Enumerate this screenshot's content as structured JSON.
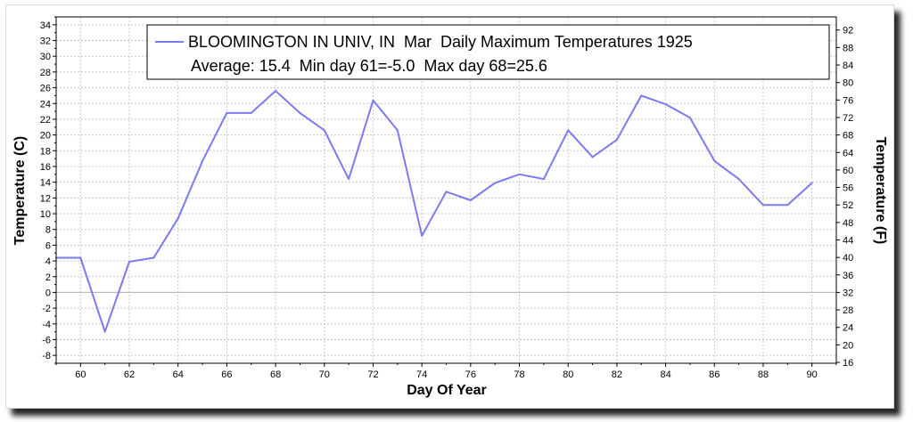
{
  "chart_data": {
    "type": "line",
    "title": "",
    "xlabel": "Day Of Year",
    "ylabel": "Temperature (C)",
    "ylabel_right": "Temperature (F)",
    "xlim": [
      59,
      91
    ],
    "ylim": [
      -9,
      35
    ],
    "ylim_right": [
      15.8,
      95
    ],
    "grid": true,
    "legend_position": "top-right",
    "x_ticks": [
      "60",
      "62",
      "64",
      "66",
      "68",
      "70",
      "72",
      "74",
      "76",
      "78",
      "80",
      "82",
      "84",
      "86",
      "88",
      "90"
    ],
    "y_ticks": [
      "-8",
      "-6",
      "-4",
      "-2",
      "0",
      "2",
      "4",
      "6",
      "8",
      "10",
      "12",
      "14",
      "16",
      "18",
      "20",
      "22",
      "24",
      "26",
      "28",
      "30",
      "32",
      "34"
    ],
    "y_ticks_right": [
      "16",
      "20",
      "24",
      "28",
      "32",
      "36",
      "40",
      "44",
      "48",
      "52",
      "56",
      "60",
      "64",
      "68",
      "72",
      "76",
      "80",
      "84",
      "88",
      "92"
    ],
    "series": [
      {
        "name": "BLOOMINGTON IN UNIV, IN  Mar  Daily Maximum Temperatures 1925",
        "color": "#7b7bef",
        "x": [
          59,
          60,
          61,
          62,
          63,
          64,
          65,
          66,
          67,
          68,
          69,
          70,
          71,
          72,
          73,
          74,
          75,
          76,
          77,
          78,
          79,
          80,
          81,
          82,
          83,
          84,
          85,
          86,
          87,
          88,
          89,
          90
        ],
        "y": [
          4.4,
          4.4,
          -5.0,
          3.9,
          4.4,
          9.4,
          16.7,
          22.8,
          22.8,
          25.6,
          22.8,
          20.6,
          14.4,
          24.4,
          20.6,
          7.2,
          12.8,
          11.7,
          13.9,
          15.0,
          14.4,
          20.6,
          17.2,
          19.4,
          25.0,
          23.9,
          22.2,
          16.7,
          14.4,
          11.1,
          11.1,
          13.9
        ]
      }
    ],
    "legend_line2": "Average: 15.4  Min day 61=-5.0  Max day 68=25.6",
    "colors": {
      "line": "#7b7bef",
      "grid": "#c8c8c8",
      "zero_line": "#b4b4b4"
    }
  }
}
